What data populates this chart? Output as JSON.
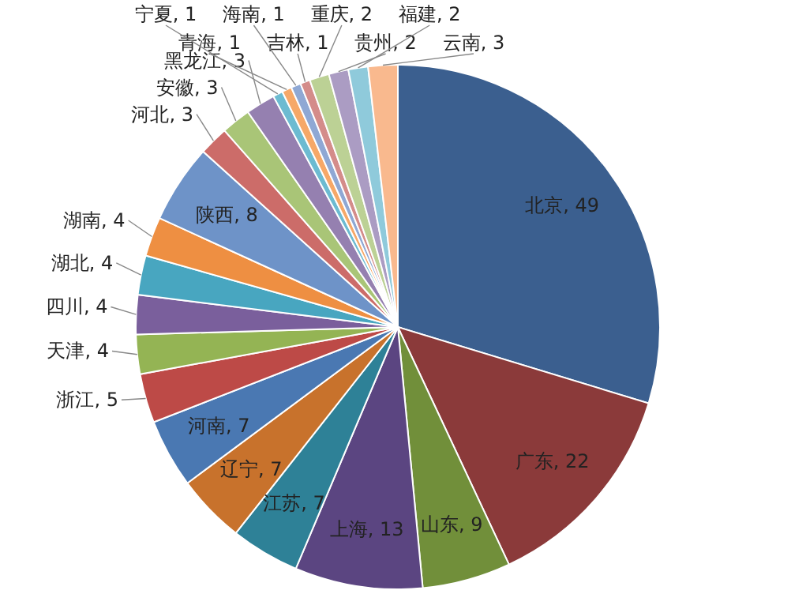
{
  "chart_data": {
    "type": "pie",
    "legend": false,
    "value_labels": [
      ", 49",
      ", 22",
      ", 9",
      ", 13",
      ", 7",
      ", 7",
      ", 7",
      ", 5",
      ", 4",
      ", 4",
      ", 4",
      ", 4",
      ", 8",
      ", 3",
      ", 3",
      ", 3",
      ", 1",
      ", 1",
      ", 1",
      ", 1",
      ", 2",
      ", 2",
      ", 2",
      ", 3"
    ],
    "categories": [
      "北京",
      "广东",
      "山东",
      "上海",
      "江苏",
      "辽宁",
      "河南",
      "浙江",
      "天津",
      "四川",
      "湖北",
      "湖南",
      "陕西",
      "河北",
      "安徽",
      "黑龙江",
      "宁夏",
      "青海",
      "海南",
      "吉林",
      "重庆",
      "贵州",
      "福建",
      "云南"
    ],
    "values": [
      49,
      22,
      9,
      13,
      7,
      7,
      7,
      5,
      4,
      4,
      4,
      4,
      8,
      3,
      3,
      3,
      1,
      1,
      1,
      1,
      2,
      2,
      2,
      3
    ],
    "colors": [
      "#3b5f8f",
      "#8b3a3a",
      "#718f3a",
      "#5b4581",
      "#2e8197",
      "#c8722c",
      "#4a78b2",
      "#bd4a47",
      "#94b454",
      "#7a5f9c",
      "#48a6c0",
      "#ee8f42",
      "#6e93c8",
      "#cc6c69",
      "#a9c577",
      "#9580b0",
      "#6cbbd1",
      "#f6a868",
      "#8fa8d4",
      "#d48c8a",
      "#bcd195",
      "#ab9cc3",
      "#8fcadb",
      "#f9b98e"
    ]
  }
}
